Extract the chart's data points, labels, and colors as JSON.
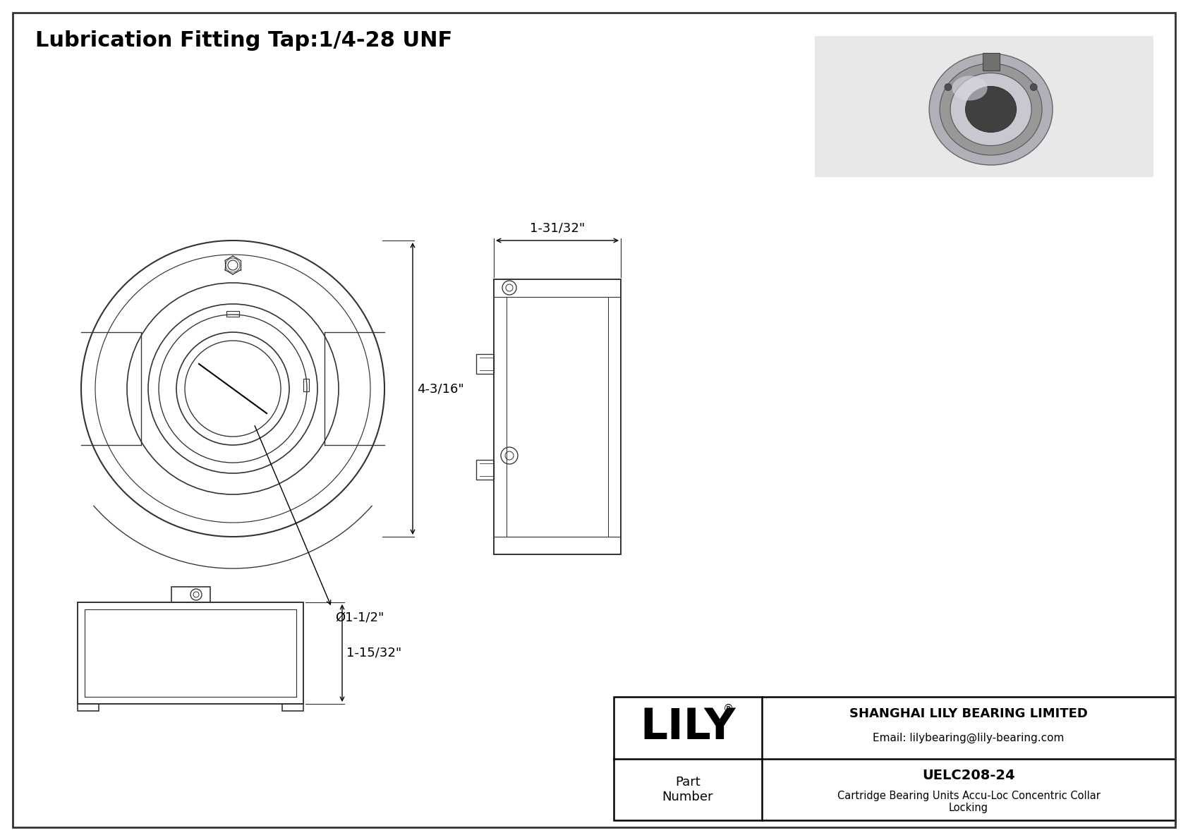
{
  "bg_color": "#ffffff",
  "border_color": "#333333",
  "line_color": "#333333",
  "title": "Lubrication Fitting Tap:1/4-28 UNF",
  "title_fontsize": 22,
  "company_name": "SHANGHAI LILY BEARING LIMITED",
  "company_email": "Email: lilybearing@lily-bearing.com",
  "brand": "LILY",
  "brand_reg": "®",
  "part_number_label": "Part\nNumber",
  "part_number": "UELC208-24",
  "description": "Cartridge Bearing Units Accu-Loc Concentric Collar\nLocking",
  "dim_4_3_16": "4-3/16\"",
  "dim_1_1_2": "Ø1-1/2\"",
  "dim_1_31_32": "1-31/32\"",
  "dim_1_15_32": "1-15/32\""
}
